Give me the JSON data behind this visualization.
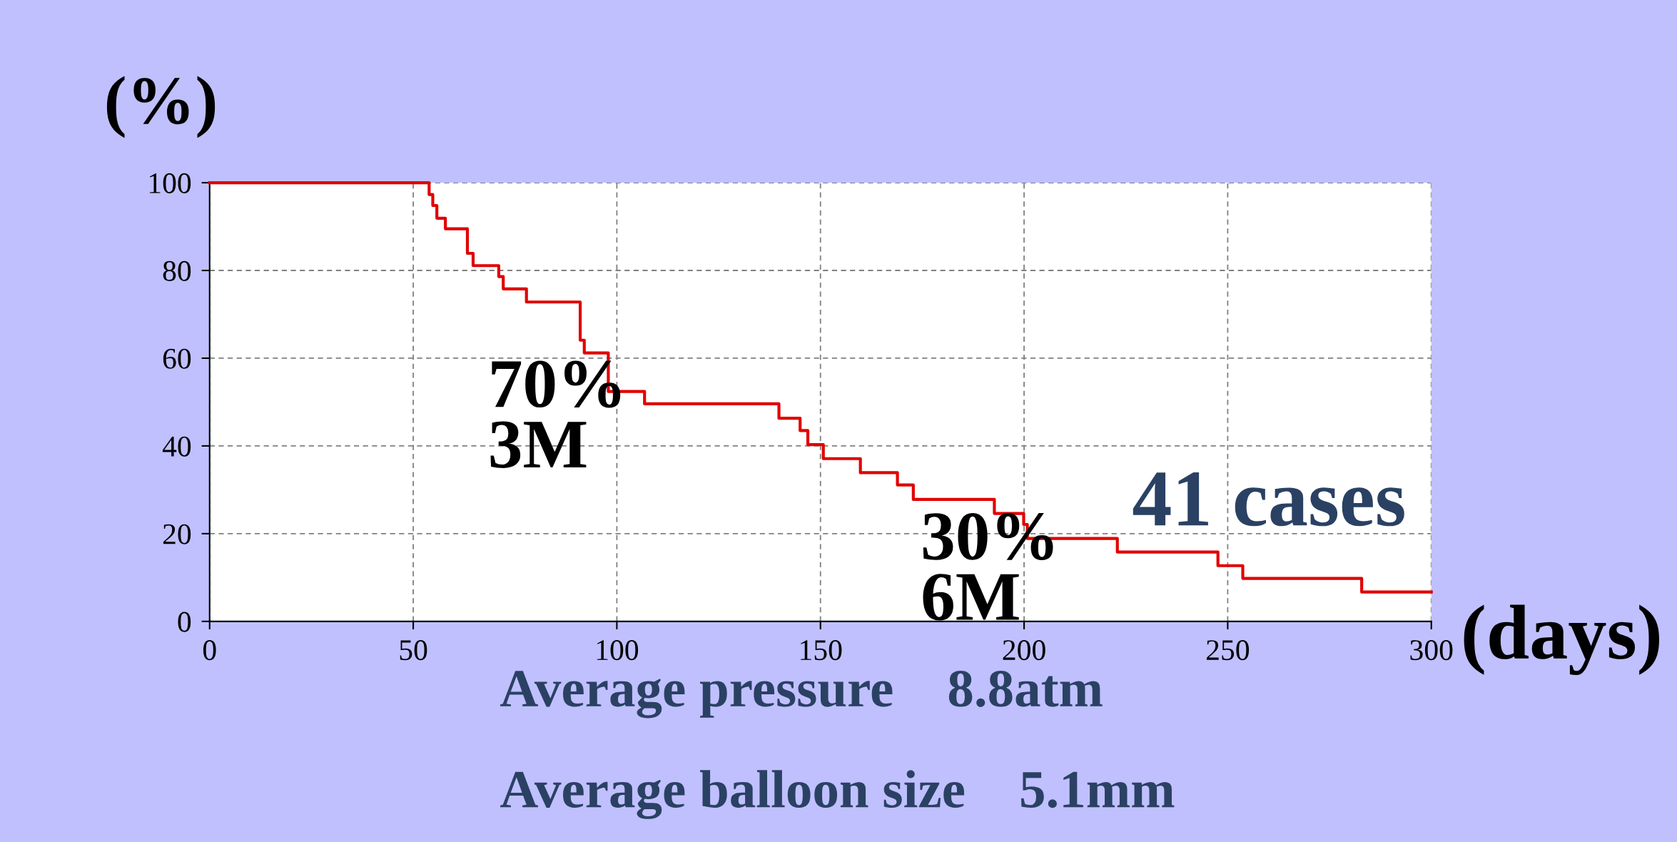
{
  "chart_data": {
    "type": "step",
    "ylabel": "(%)",
    "xlabel": "(days)",
    "series": [
      {
        "color": "#e00000",
        "x": [
          0,
          53.9,
          54.8,
          55.8,
          57.9,
          63.3,
          64.7,
          71.0,
          72.1,
          77.8,
          91.0,
          92.0,
          97.9,
          106.8,
          139.8,
          145.0,
          146.9,
          150.7,
          159.8,
          168.9,
          172.8,
          192.7,
          199.9,
          200.8,
          222.9,
          247.6,
          253.7,
          282.9,
          300
        ],
        "values": [
          100,
          97.3,
          94.8,
          91.9,
          89.5,
          83.9,
          81.1,
          78.6,
          75.8,
          72.8,
          64.1,
          61.2,
          52.4,
          49.6,
          46.3,
          43.5,
          40.3,
          37.1,
          33.9,
          31.1,
          27.8,
          24.6,
          22.1,
          18.9,
          15.8,
          12.7,
          9.8,
          6.7,
          6.7
        ]
      }
    ],
    "xlim": [
      0,
      300
    ],
    "xticks": [
      0,
      50,
      100,
      150,
      200,
      250,
      300
    ],
    "ylim": [
      0,
      100
    ],
    "yticks": [
      0,
      20,
      40,
      60,
      80,
      100
    ],
    "grid": true,
    "line_style": "solid",
    "marker": "none",
    "annotations": [
      "70%\n3M",
      "30%\n6M",
      "41 cases",
      "Average pressure    8.8atm\nAverage balloon size    5.1mm"
    ]
  }
}
